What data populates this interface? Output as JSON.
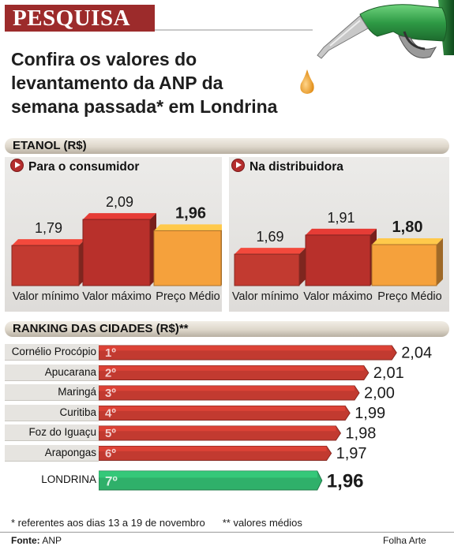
{
  "section_tag": "PESQUISA",
  "headline": [
    "Confira os valores do",
    "levantamento da ANP da",
    "semana passada* em Londrina"
  ],
  "etanol_bar": "ETANOL (R$)",
  "ranking_bar": "RANKING DAS CIDADES  (R$)**",
  "footnotes": [
    "* referentes aos dias 13 a 19 de novembro",
    "** valores médios"
  ],
  "source_label": "Fonte:",
  "source_value": "ANP",
  "credit": "Folha Arte",
  "colors": {
    "red": "#c23a30",
    "dark_red": "#8c2020",
    "orange": "#f5a13c",
    "green": "#2fb06a",
    "tag": "#9c2b2b"
  },
  "icons": [
    "fuel-nozzle-icon",
    "drop-icon",
    "play-arrow-icon"
  ],
  "chart_data": [
    {
      "type": "bar",
      "title": "Para o consumidor",
      "categories": [
        "Valor mínimo",
        "Valor máximo",
        "Preço Médio"
      ],
      "values": [
        1.79,
        2.09,
        1.96
      ],
      "labels": [
        "1,79",
        "2,09",
        "1,96"
      ],
      "highlight": "Preço Médio"
    },
    {
      "type": "bar",
      "title": "Na distribuidora",
      "categories": [
        "Valor mínimo",
        "Valor máximo",
        "Preço Médio"
      ],
      "values": [
        1.69,
        1.91,
        1.8
      ],
      "labels": [
        "1,69",
        "1,91",
        "1,80"
      ],
      "highlight": "Preço Médio"
    },
    {
      "type": "bar",
      "orientation": "horizontal",
      "title": "RANKING DAS CIDADES  (R$)**",
      "categories": [
        "Cornélio Procópio",
        "Apucarana",
        "Maringá",
        "Curitiba",
        "Foz do Iguaçu",
        "Arapongas",
        "LONDRINA"
      ],
      "ranks": [
        "1º",
        "2º",
        "3º",
        "4º",
        "5º",
        "6º",
        "7º"
      ],
      "values": [
        2.04,
        2.01,
        2.0,
        1.99,
        1.98,
        1.97,
        1.96
      ],
      "labels": [
        "2,04",
        "2,01",
        "2,00",
        "1,99",
        "1,98",
        "1,97",
        "1,96"
      ],
      "highlight": "LONDRINA"
    }
  ]
}
